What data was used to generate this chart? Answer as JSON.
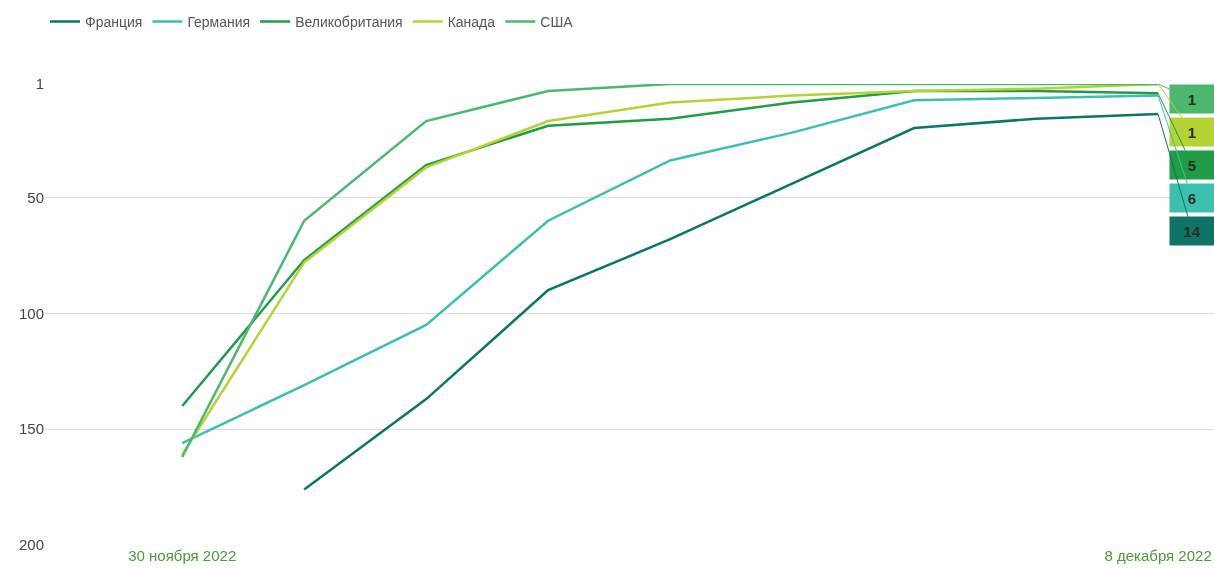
{
  "chart_data": {
    "type": "line",
    "x": [
      "2022-11-30",
      "2022-12-01",
      "2022-12-02",
      "2022-12-03",
      "2022-12-04",
      "2022-12-05",
      "2022-12-06",
      "2022-12-07",
      "2022-12-08"
    ],
    "series": [
      {
        "name": "Франция",
        "color": "#0e7566",
        "values": [
          null,
          176,
          137,
          90,
          68,
          44,
          20,
          16,
          14
        ],
        "value_labels": [
          null,
          null,
          null,
          null,
          null,
          null,
          null,
          null,
          "14"
        ]
      },
      {
        "name": "Германия",
        "color": "#3dbfb0",
        "values": [
          156,
          131,
          105,
          60,
          34,
          22,
          8,
          7,
          6
        ],
        "value_labels": [
          null,
          null,
          null,
          null,
          null,
          null,
          null,
          null,
          "6"
        ]
      },
      {
        "name": "Великобритания",
        "color": "#1f9c45",
        "values": [
          140,
          77,
          36,
          19,
          16,
          9,
          4,
          4,
          5
        ],
        "value_labels": [
          null,
          null,
          null,
          null,
          null,
          null,
          null,
          null,
          "5"
        ]
      },
      {
        "name": "Канада",
        "color": "#b5d334",
        "values": [
          161,
          78,
          37,
          17,
          9,
          6,
          4,
          3,
          1
        ],
        "value_labels": [
          null,
          null,
          null,
          null,
          null,
          null,
          null,
          null,
          "1"
        ]
      },
      {
        "name": "США",
        "color": "#4cb86e",
        "values": [
          162,
          60,
          17,
          4,
          1,
          1,
          1,
          1,
          1
        ],
        "value_labels": [
          null,
          null,
          null,
          null,
          null,
          null,
          null,
          null,
          "1"
        ]
      }
    ],
    "ylim": [
      200,
      1
    ],
    "yticks": [
      1,
      50,
      100,
      150,
      200
    ],
    "xlim": [
      "2022-11-28T21:00",
      "2022-12-08T11:00"
    ],
    "xticks": [
      {
        "value": "2022-11-30",
        "label": "30 ноября 2022"
      },
      {
        "value": "2022-12-08",
        "label": "8 декабря 2022"
      }
    ],
    "grid": "y",
    "legend": "top left",
    "marker": "none",
    "line_style": "solid"
  }
}
